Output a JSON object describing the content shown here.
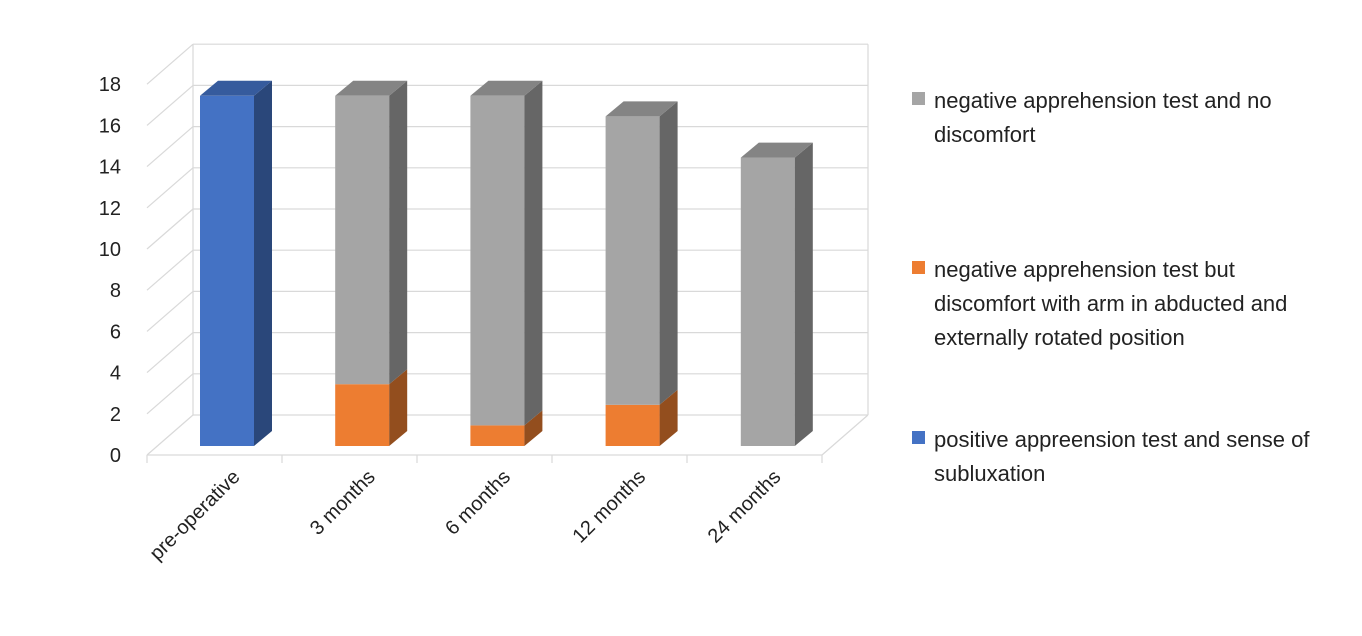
{
  "chart_data": {
    "type": "bar",
    "stacked": true,
    "three_d": true,
    "categories": [
      "pre-operative",
      "3 months",
      "6 months",
      "12 months",
      "24 months"
    ],
    "series": [
      {
        "name": "positive appreension test and sense of subluxation",
        "color": "#4472c4",
        "values": [
          17,
          0,
          0,
          0,
          0
        ]
      },
      {
        "name": "negative apprehension test but discomfort with arm in abducted and externally rotated position",
        "color": "#ed7d31",
        "values": [
          0,
          3,
          1,
          2,
          0
        ]
      },
      {
        "name": "negative apprehension test and no discomfort",
        "color": "#a5a5a5",
        "values": [
          0,
          14,
          16,
          14,
          14
        ]
      }
    ],
    "title": "",
    "xlabel": "",
    "ylabel": "",
    "ylim": [
      0,
      18
    ],
    "yticks": [
      "0",
      "2",
      "4",
      "6",
      "8",
      "10",
      "12",
      "14",
      "16",
      "18"
    ],
    "grid": true,
    "legend_position": "right"
  }
}
